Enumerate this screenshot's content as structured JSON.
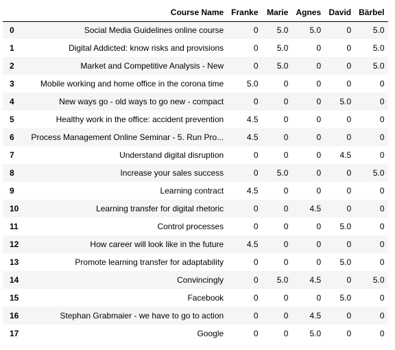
{
  "table": {
    "index_header": "",
    "columns": [
      "Course Name",
      "Franke",
      "Marie",
      "Agnes",
      "David",
      "Bärbel"
    ],
    "rows": [
      {
        "index": "0",
        "cells": [
          "Social Media Guidelines online course",
          "0",
          "5.0",
          "5.0",
          "0",
          "5.0"
        ]
      },
      {
        "index": "1",
        "cells": [
          "Digital Addicted: know risks and provisions",
          "0",
          "5.0",
          "0",
          "0",
          "5.0"
        ]
      },
      {
        "index": "2",
        "cells": [
          "Market and Competitive Analysis - New",
          "0",
          "5.0",
          "0",
          "0",
          "5.0"
        ]
      },
      {
        "index": "3",
        "cells": [
          "Mobile working and home office in the corona time",
          "5.0",
          "0",
          "0",
          "0",
          "0"
        ]
      },
      {
        "index": "4",
        "cells": [
          "New ways go - old ways to go new - compact",
          "0",
          "0",
          "0",
          "5.0",
          "0"
        ]
      },
      {
        "index": "5",
        "cells": [
          "Healthy work in the office: accident prevention",
          "4.5",
          "0",
          "0",
          "0",
          "0"
        ]
      },
      {
        "index": "6",
        "cells": [
          "Process Management Online Seminar - 5. Run Pro...",
          "4.5",
          "0",
          "0",
          "0",
          "0"
        ]
      },
      {
        "index": "7",
        "cells": [
          "Understand digital disruption",
          "0",
          "0",
          "0",
          "4.5",
          "0"
        ]
      },
      {
        "index": "8",
        "cells": [
          "Increase your sales success",
          "0",
          "5.0",
          "0",
          "0",
          "5.0"
        ]
      },
      {
        "index": "9",
        "cells": [
          "Learning contract",
          "4.5",
          "0",
          "0",
          "0",
          "0"
        ]
      },
      {
        "index": "10",
        "cells": [
          "Learning transfer for digital rhetoric",
          "0",
          "0",
          "4.5",
          "0",
          "0"
        ]
      },
      {
        "index": "11",
        "cells": [
          "Control processes",
          "0",
          "0",
          "0",
          "5.0",
          "0"
        ]
      },
      {
        "index": "12",
        "cells": [
          "How career will look like in the future",
          "4.5",
          "0",
          "0",
          "0",
          "0"
        ]
      },
      {
        "index": "13",
        "cells": [
          "Promote learning transfer for adaptability",
          "0",
          "0",
          "0",
          "5.0",
          "0"
        ]
      },
      {
        "index": "14",
        "cells": [
          "Convincingly",
          "0",
          "5.0",
          "4.5",
          "0",
          "5.0"
        ]
      },
      {
        "index": "15",
        "cells": [
          "Facebook",
          "0",
          "0",
          "0",
          "5.0",
          "0"
        ]
      },
      {
        "index": "16",
        "cells": [
          "Stephan Grabmaier - we have to go to action",
          "0",
          "0",
          "4.5",
          "0",
          "0"
        ]
      },
      {
        "index": "17",
        "cells": [
          "Google",
          "0",
          "0",
          "5.0",
          "0",
          "0"
        ]
      }
    ]
  },
  "colors": {
    "stripe": "#f5f5f5",
    "background": "#ffffff",
    "header_rule": "#000000"
  }
}
